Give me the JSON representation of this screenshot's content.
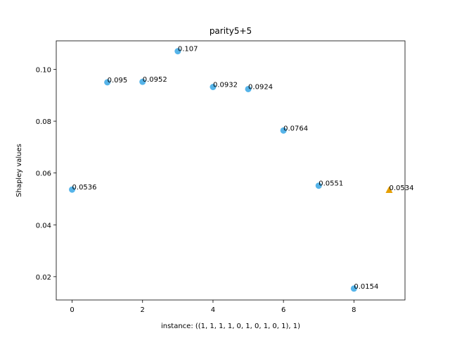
{
  "chart_data": {
    "type": "scatter",
    "title": "parity5+5",
    "xlabel": "instance: ((1, 1, 1, 1, 0, 1, 0, 1, 0, 1), 1)",
    "ylabel": "Shapley values",
    "xlim": [
      -0.45,
      9.45
    ],
    "ylim": [
      0.011,
      0.111
    ],
    "xticks": [
      0,
      2,
      4,
      6,
      8
    ],
    "yticks": [
      0.02,
      0.04,
      0.06,
      0.08,
      0.1
    ],
    "ytick_labels": [
      "0.02",
      "0.04",
      "0.06",
      "0.08",
      "0.10"
    ],
    "grid": false,
    "points": [
      {
        "x": 0,
        "y": 0.0536,
        "label": "0.0536",
        "marker": "circle",
        "color": "#56B4E9"
      },
      {
        "x": 1,
        "y": 0.095,
        "label": "0.095",
        "marker": "circle",
        "color": "#56B4E9"
      },
      {
        "x": 2,
        "y": 0.0952,
        "label": "0.0952",
        "marker": "circle",
        "color": "#56B4E9"
      },
      {
        "x": 3,
        "y": 0.107,
        "label": "0.107",
        "marker": "circle",
        "color": "#56B4E9"
      },
      {
        "x": 4,
        "y": 0.0932,
        "label": "0.0932",
        "marker": "circle",
        "color": "#56B4E9"
      },
      {
        "x": 5,
        "y": 0.0924,
        "label": "0.0924",
        "marker": "circle",
        "color": "#56B4E9"
      },
      {
        "x": 6,
        "y": 0.0764,
        "label": "0.0764",
        "marker": "circle",
        "color": "#56B4E9"
      },
      {
        "x": 7,
        "y": 0.0551,
        "label": "0.0551",
        "marker": "circle",
        "color": "#56B4E9"
      },
      {
        "x": 8,
        "y": 0.0154,
        "label": "0.0154",
        "marker": "circle",
        "color": "#56B4E9"
      },
      {
        "x": 9,
        "y": 0.0534,
        "label": "0.0534",
        "marker": "triangle",
        "color": "#E69F00"
      }
    ]
  }
}
